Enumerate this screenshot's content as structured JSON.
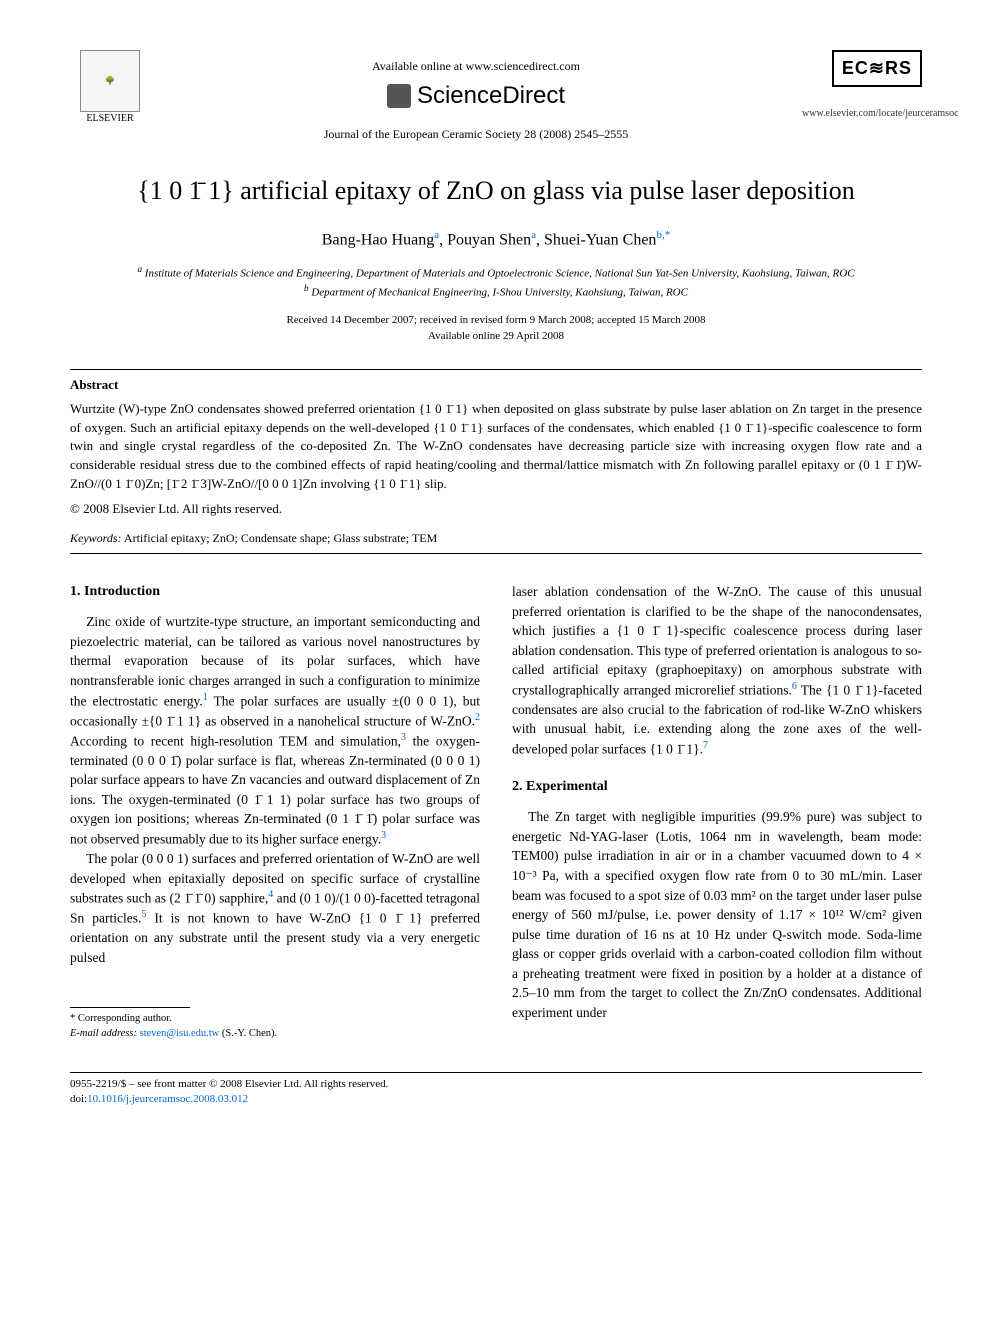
{
  "header": {
    "available_online": "Available online at www.sciencedirect.com",
    "sciencedirect": "ScienceDirect",
    "journal_ref": "Journal of the European Ceramic Society 28 (2008) 2545–2555",
    "elsevier_label": "ELSEVIER",
    "ecers_label": "EC≋RS",
    "homepage": "www.elsevier.com/locate/jeurceramsoc"
  },
  "title": "{1 0 1̄ 1} artificial epitaxy of ZnO on glass via pulse laser deposition",
  "authors": {
    "a1_name": "Bang-Hao Huang",
    "a1_sup": "a",
    "a2_name": "Pouyan Shen",
    "a2_sup": "a",
    "a3_name": "Shuei-Yuan Chen",
    "a3_sup": "b,",
    "corr": "*"
  },
  "affiliations": {
    "a": "Institute of Materials Science and Engineering, Department of Materials and Optoelectronic Science, National Sun Yat-Sen University, Kaohsiung, Taiwan, ROC",
    "a_sup": "a",
    "b": "Department of Mechanical Engineering, I-Shou University, Kaohsiung, Taiwan, ROC",
    "b_sup": "b"
  },
  "dates": {
    "received": "Received 14 December 2007; received in revised form 9 March 2008; accepted 15 March 2008",
    "online": "Available online 29 April 2008"
  },
  "abstract": {
    "heading": "Abstract",
    "body": "Wurtzite (W)-type ZnO condensates showed preferred orientation {1 0 1̄ 1} when deposited on glass substrate by pulse laser ablation on Zn target in the presence of oxygen. Such an artificial epitaxy depends on the well-developed {1 0 1̄ 1} surfaces of the condensates, which enabled {1 0 1̄ 1}-specific coalescence to form twin and single crystal regardless of the co-deposited Zn. The W-ZnO condensates have decreasing particle size with increasing oxygen flow rate and a considerable residual stress due to the combined effects of rapid heating/cooling and thermal/lattice mismatch with Zn following parallel epitaxy or (0 1 1̄ 1̄)W-ZnO//(0 1 1̄ 0)Zn; [1̄ 2 1̄ 3]W-ZnO//[0 0 0 1]Zn involving {1 0 1̄ 1} slip.",
    "copyright": "© 2008 Elsevier Ltd. All rights reserved."
  },
  "keywords": {
    "label": "Keywords:",
    "list": "Artificial epitaxy; ZnO; Condensate shape; Glass substrate; TEM"
  },
  "sections": {
    "intro_heading": "1. Introduction",
    "intro_p1": "Zinc oxide of wurtzite-type structure, an important semiconducting and piezoelectric material, can be tailored as various novel nanostructures by thermal evaporation because of its polar surfaces, which have nontransferable ionic charges arranged in such a configuration to minimize the electrostatic energy.",
    "intro_p1b": " The polar surfaces are usually ±(0 0 0 1), but occasionally ±{0 1̄ 1 1} as observed in a nanohelical structure of W-ZnO.",
    "intro_p1c": " According to recent high-resolution TEM and simulation,",
    "intro_p1d": " the oxygen-terminated (0 0 0 1̄) polar surface is flat, whereas Zn-terminated (0 0 0 1) polar surface appears to have Zn vacancies and outward displacement of Zn ions. The oxygen-terminated (0 1̄ 1 1) polar surface has two groups of oxygen ion positions; whereas Zn-terminated (0 1 1̄ 1̄) polar surface was not observed presumably due to its higher surface energy.",
    "intro_p2a": "The polar (0 0 0 1) surfaces and preferred orientation of W-ZnO are well developed when epitaxially deposited on specific surface of crystalline substrates such as (2 1̄ 1̄ 0) sapphire,",
    "intro_p2b": " and (0 1 0)/(1 0 0)-facetted tetragonal Sn particles.",
    "intro_p2c": " It is not known to have W-ZnO {1 0 1̄ 1} preferred orientation on any substrate until the present study via a very energetic pulsed",
    "col2_p1a": "laser ablation condensation of the W-ZnO. The cause of this unusual preferred orientation is clarified to be the shape of the nanocondensates, which justifies a {1 0 1̄ 1}-specific coalescence process during laser ablation condensation. This type of preferred orientation is analogous to so-called artificial epitaxy (graphoepitaxy) on amorphous substrate with crystallographically arranged microrelief striations.",
    "col2_p1b": " The {1 0 1̄ 1}-faceted condensates are also crucial to the fabrication of rod-like W-ZnO whiskers with unusual habit, i.e. extending along the zone axes of the well-developed polar surfaces {1 0 1̄ 1}.",
    "exp_heading": "2. Experimental",
    "exp_p1": "The Zn target with negligible impurities (99.9% pure) was subject to energetic Nd-YAG-laser (Lotis, 1064 nm in wavelength, beam mode: TEM00) pulse irradiation in air or in a chamber vacuumed down to 4 × 10⁻³ Pa, with a specified oxygen flow rate from 0 to 30 mL/min. Laser beam was focused to a spot size of 0.03 mm² on the target under laser pulse energy of 560 mJ/pulse, i.e. power density of 1.17 × 10¹² W/cm² given pulse time duration of 16 ns at 10 Hz under Q-switch mode. Soda-lime glass or copper grids overlaid with a carbon-coated collodion film without a preheating treatment were fixed in position by a holder at a distance of 2.5–10 mm from the target to collect the Zn/ZnO condensates. Additional experiment under"
  },
  "refs": {
    "r1": "1",
    "r2": "2",
    "r3": "3",
    "r3b": "3",
    "r4": "4",
    "r5": "5",
    "r6": "6",
    "r7": "7"
  },
  "footnote": {
    "corr_label": "* Corresponding author.",
    "email_label": "E-mail address:",
    "email": "steven@isu.edu.tw",
    "email_who": " (S.-Y. Chen)."
  },
  "footer": {
    "line1": "0955-2219/$ – see front matter © 2008 Elsevier Ltd. All rights reserved.",
    "doi_label": "doi:",
    "doi": "10.1016/j.jeurceramsoc.2008.03.012"
  }
}
